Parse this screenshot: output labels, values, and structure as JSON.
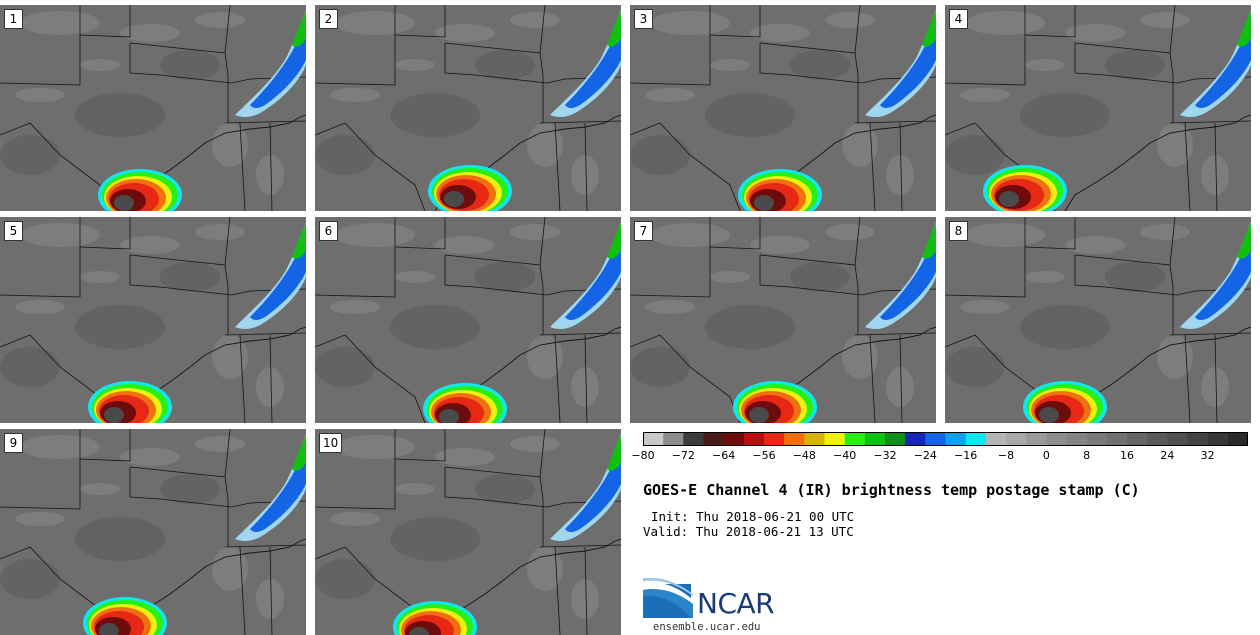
{
  "figure": {
    "title": "GOES-E Channel 4 (IR) brightness temp postage stamp (C)",
    "init": "Init: Thu 2018-06-21 00 UTC",
    "valid": "Valid: Thu 2018-06-21 13 UTC"
  },
  "panels": [
    {
      "label": "1"
    },
    {
      "label": "2"
    },
    {
      "label": "3"
    },
    {
      "label": "4"
    },
    {
      "label": "5"
    },
    {
      "label": "6"
    },
    {
      "label": "7"
    },
    {
      "label": "8"
    },
    {
      "label": "9"
    },
    {
      "label": "10"
    }
  ],
  "colorbar": {
    "tick_labels": [
      "−80",
      "−72",
      "−64",
      "−56",
      "−48",
      "−40",
      "−32",
      "−24",
      "−16",
      "−8",
      "0",
      "8",
      "16",
      "24",
      "32"
    ],
    "tick_values": [
      -80,
      -72,
      -64,
      -56,
      -48,
      -40,
      -32,
      -24,
      -16,
      -8,
      0,
      8,
      16,
      24,
      32
    ],
    "range": [
      -80,
      40
    ],
    "bins": [
      {
        "from": -80,
        "to": -76,
        "color": "#c8c8c8"
      },
      {
        "from": -76,
        "to": -72,
        "color": "#8c8c8c"
      },
      {
        "from": -72,
        "to": -68,
        "color": "#3c3c3c"
      },
      {
        "from": -68,
        "to": -64,
        "color": "#4a1a1a"
      },
      {
        "from": -64,
        "to": -60,
        "color": "#6e0c0c"
      },
      {
        "from": -60,
        "to": -56,
        "color": "#b41010"
      },
      {
        "from": -56,
        "to": -52,
        "color": "#e62814"
      },
      {
        "from": -52,
        "to": -48,
        "color": "#f07010"
      },
      {
        "from": -48,
        "to": -44,
        "color": "#d8b400"
      },
      {
        "from": -44,
        "to": -40,
        "color": "#f0f010"
      },
      {
        "from": -40,
        "to": -36,
        "color": "#28f014"
      },
      {
        "from": -36,
        "to": -32,
        "color": "#10c010"
      },
      {
        "from": -32,
        "to": -28,
        "color": "#10901a"
      },
      {
        "from": -28,
        "to": -24,
        "color": "#1428b4"
      },
      {
        "from": -24,
        "to": -20,
        "color": "#1464e6"
      },
      {
        "from": -20,
        "to": -16,
        "color": "#14a0f0"
      },
      {
        "from": -16,
        "to": -12,
        "color": "#10e6ee"
      },
      {
        "from": -12,
        "to": -8,
        "color": "#b4b4b4"
      },
      {
        "from": -8,
        "to": -4,
        "color": "#a8a8a8"
      },
      {
        "from": -4,
        "to": 0,
        "color": "#9a9a9a"
      },
      {
        "from": 0,
        "to": 4,
        "color": "#8e8e8e"
      },
      {
        "from": 4,
        "to": 8,
        "color": "#848484"
      },
      {
        "from": 8,
        "to": 12,
        "color": "#7a7a7a"
      },
      {
        "from": 12,
        "to": 16,
        "color": "#707070"
      },
      {
        "from": 16,
        "to": 20,
        "color": "#666666"
      },
      {
        "from": 20,
        "to": 24,
        "color": "#5a5a5a"
      },
      {
        "from": 24,
        "to": 28,
        "color": "#505050"
      },
      {
        "from": 28,
        "to": 32,
        "color": "#444444"
      },
      {
        "from": 32,
        "to": 36,
        "color": "#383838"
      },
      {
        "from": 36,
        "to": 40,
        "color": "#2a2a2a"
      }
    ]
  },
  "logo": {
    "brand": "NCAR",
    "url": "ensemble.ucar.edu"
  },
  "colors": {
    "background_gray": "#6e6e6e",
    "border_line": "#141414",
    "ncar_blue": "#1a3a78"
  }
}
